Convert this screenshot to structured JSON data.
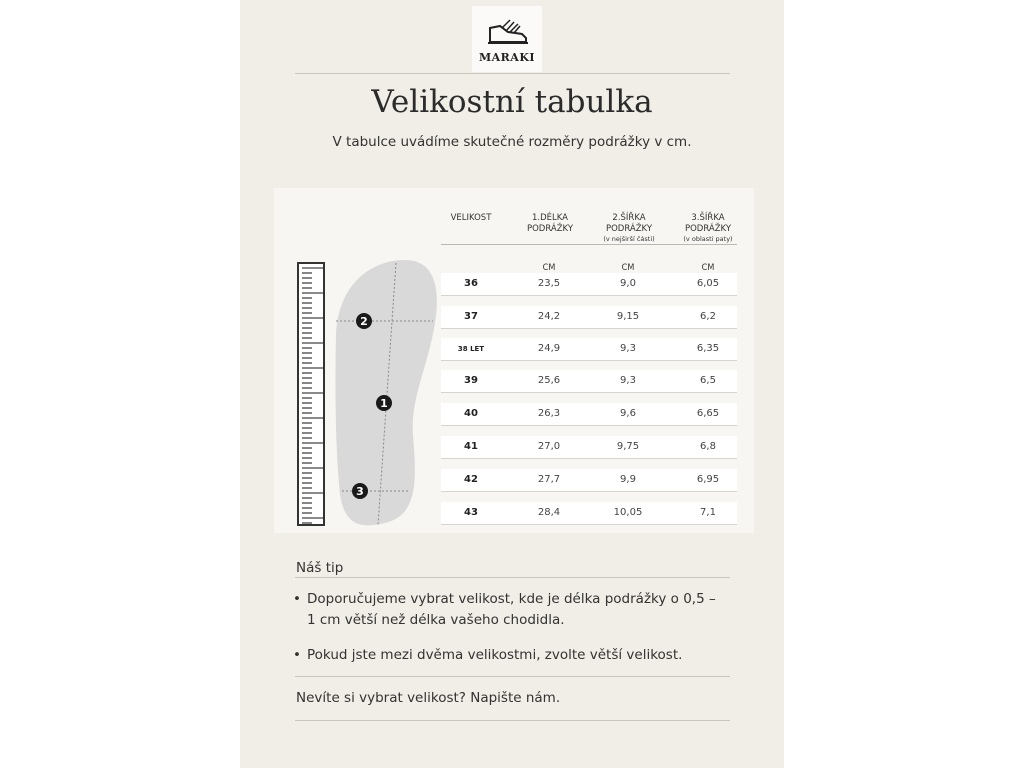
{
  "brand": "MARAKI",
  "title": "Velikostní tabulka",
  "subtitle": "V tabulce uvádíme skutečné rozměry podrážky v cm.",
  "table": {
    "headers": [
      {
        "label": "VELIKOST",
        "note": ""
      },
      {
        "label": "1.DÉLKA PODRÁŽKY",
        "note": ""
      },
      {
        "label": "2.ŠÍŘKA PODRÁŽKY",
        "note": "(v nejširší části)"
      },
      {
        "label": "3.ŠÍŘKA PODRÁŽKY",
        "note": "(v oblasti paty)"
      }
    ],
    "unit": "CM",
    "rows": [
      [
        "36",
        "23,5",
        "9,0",
        "6,05"
      ],
      [
        "37",
        "24,2",
        "9,15",
        "6,2"
      ],
      [
        "38 LET",
        "24,9",
        "9,3",
        "6,35"
      ],
      [
        "39",
        "25,6",
        "9,3",
        "6,5"
      ],
      [
        "40",
        "26,3",
        "9,6",
        "6,65"
      ],
      [
        "41",
        "27,0",
        "9,75",
        "6,8"
      ],
      [
        "42",
        "27,7",
        "9,9",
        "6,95"
      ],
      [
        "43",
        "28,4",
        "10,05",
        "7,1"
      ]
    ]
  },
  "diagram": {
    "markers": [
      "1",
      "2",
      "3"
    ]
  },
  "tip": {
    "heading": "Náš tip",
    "bullets": [
      "Doporučujeme vybrat velikost, kde je délka podrážky o 0,5 – 1 cm větší než délka vašeho chodidla.",
      "Pokud jste mezi dvěma velikostmi, zvolte větší velikost."
    ],
    "contact": "Nevíte si vybrat velikost? Napište nám."
  }
}
